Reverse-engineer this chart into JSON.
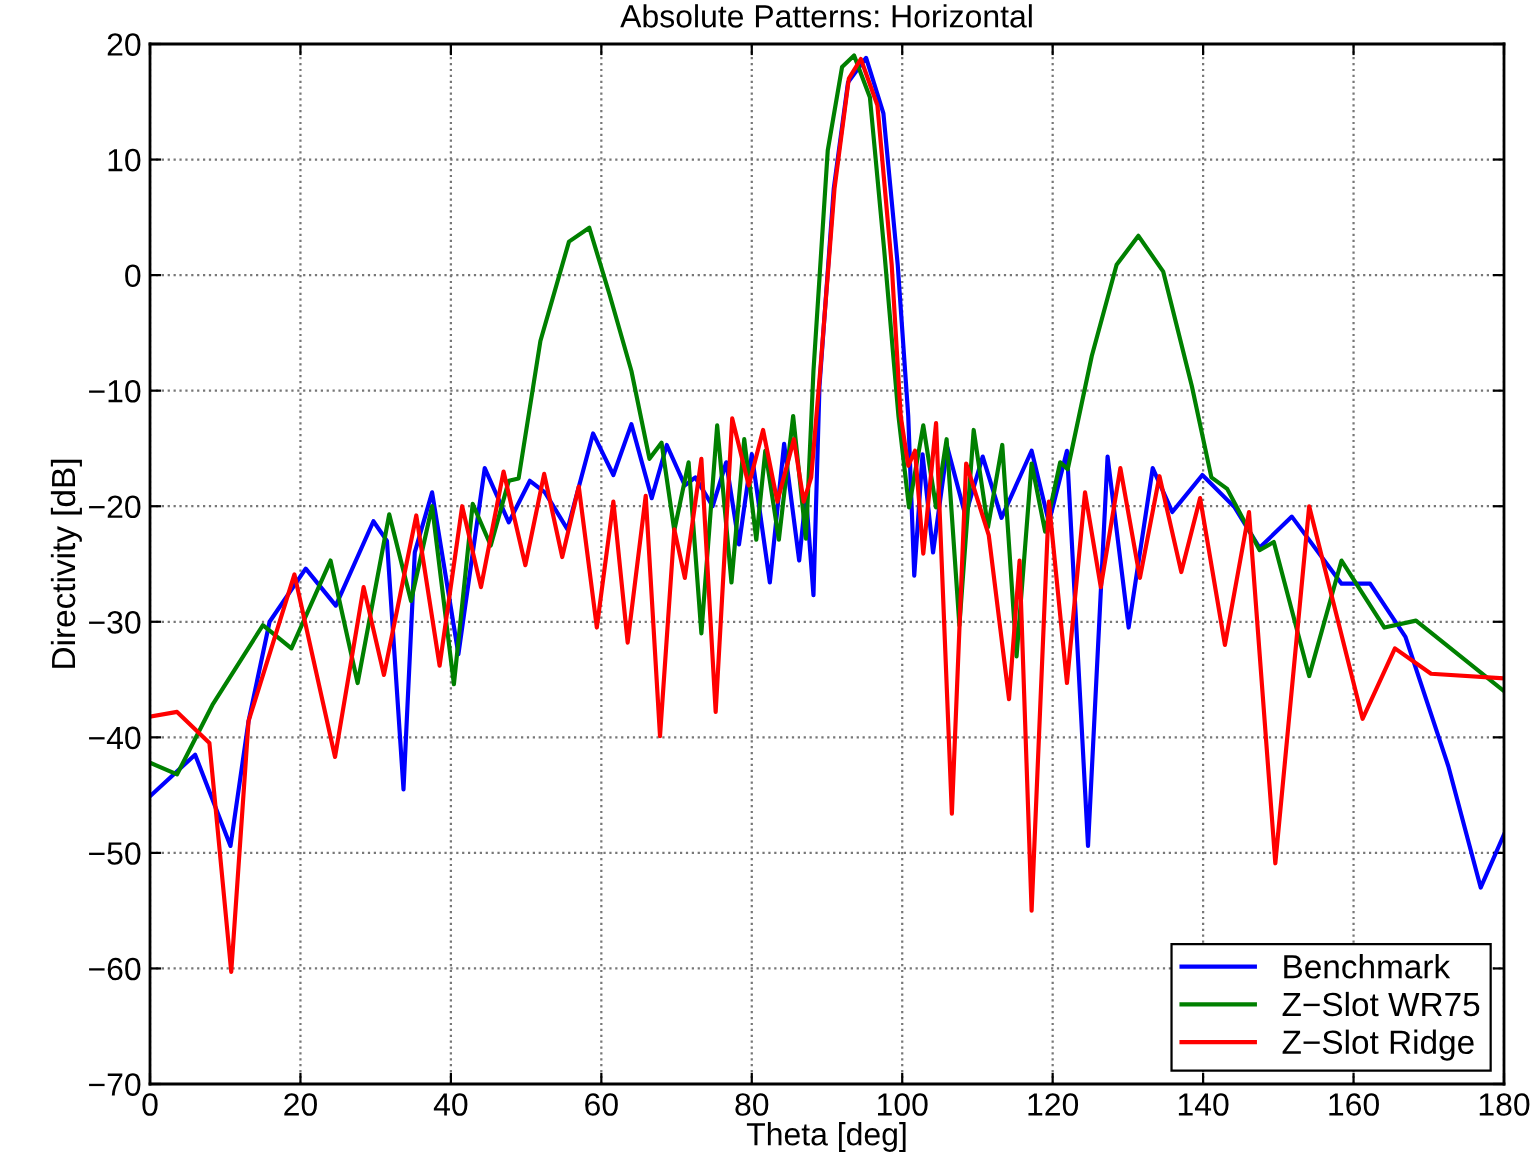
{
  "chart_data": {
    "type": "line",
    "title": "Absolute Patterns: Horizontal",
    "xlabel": "Theta [deg]",
    "ylabel": "Directivity [dB]",
    "xlim": [
      0,
      180
    ],
    "ylim": [
      -70,
      20
    ],
    "xticks": [
      0,
      20,
      40,
      60,
      80,
      100,
      120,
      140,
      160,
      180
    ],
    "yticks": [
      -70,
      -60,
      -50,
      -40,
      -30,
      -20,
      -10,
      0,
      10,
      20
    ],
    "grid": true,
    "legend": "bottom right",
    "line_style": "solid",
    "series": [
      {
        "name": "Benchmark",
        "color": "#0000ff",
        "x": [
          0,
          6,
          10.7,
          13.1,
          15.9,
          20.7,
          24.7,
          29.7,
          31.5,
          33.7,
          35.2,
          37.5,
          41,
          44.5,
          47.7,
          50.5,
          52.5,
          55.5,
          58.9,
          61.6,
          64,
          66.7,
          68.7,
          71.1,
          72.5,
          74.8,
          76.6,
          78.3,
          80,
          82.4,
          84.3,
          86.3,
          87.2,
          88.2,
          89,
          90.9,
          92.8,
          95.2,
          97.5,
          99.4,
          100.8,
          101.6,
          102.7,
          104.1,
          106,
          108.4,
          110.7,
          113.2,
          117.2,
          119.5,
          121.9,
          124.7,
          127.3,
          130.1,
          133.3,
          135.9,
          139.9,
          144.2,
          147.5,
          151.8,
          158.4,
          162.2,
          166.9,
          172.6,
          176.9,
          180
        ],
        "values": [
          -45.1,
          -41.5,
          -49.4,
          -38.6,
          -30,
          -25.4,
          -28.6,
          -21.3,
          -23,
          -44.5,
          -24,
          -18.8,
          -32.8,
          -16.7,
          -21.4,
          -17.8,
          -18.8,
          -22,
          -13.7,
          -17.3,
          -12.9,
          -19.3,
          -14.7,
          -18.2,
          -17.5,
          -20,
          -16.2,
          -23.3,
          -15.5,
          -26.6,
          -14.6,
          -24.7,
          -19,
          -27.7,
          -9.6,
          7.5,
          16.7,
          18.8,
          14,
          0.9,
          -12.2,
          -26,
          -15.5,
          -24,
          -14.9,
          -20.8,
          -15.7,
          -21,
          -15.2,
          -21.4,
          -15.2,
          -49.4,
          -15.7,
          -30.5,
          -16.7,
          -20.5,
          -17.3,
          -20.1,
          -23.6,
          -20.9,
          -26.7,
          -26.7,
          -31.3,
          -42.5,
          -53,
          -48.4
        ]
      },
      {
        "name": "Z−Slot WR75",
        "color": "#008000",
        "x": [
          0,
          3.6,
          8.3,
          15,
          18.8,
          24,
          27.6,
          31.8,
          34.7,
          37.5,
          40.4,
          42.9,
          45.3,
          47.7,
          49,
          51.9,
          55.7,
          58.4,
          61.1,
          64,
          66.4,
          68,
          69.7,
          71.6,
          73.3,
          75.4,
          77.3,
          79,
          80.6,
          81.8,
          83.6,
          85.5,
          87.2,
          88.2,
          90.1,
          92,
          93.6,
          95.7,
          97.6,
          99.5,
          100.9,
          102.8,
          104.5,
          105.9,
          107.6,
          109.5,
          111.4,
          113.3,
          115.2,
          117.2,
          119,
          121,
          122,
          125.2,
          128.5,
          131.4,
          134.7,
          138.5,
          141.1,
          143.2,
          147.5,
          149.4,
          154.1,
          158.4,
          164.1,
          168.3,
          180
        ],
        "values": [
          -42.2,
          -43.2,
          -37.2,
          -30.3,
          -32.3,
          -24.7,
          -35.3,
          -20.7,
          -28.2,
          -20,
          -35.4,
          -19.8,
          -23.4,
          -17.8,
          -17.6,
          -5.7,
          2.9,
          4.1,
          -1.7,
          -8.3,
          -15.9,
          -14.5,
          -22.1,
          -16.2,
          -31,
          -13,
          -26.6,
          -14.2,
          -22.9,
          -15.2,
          -22.9,
          -12.2,
          -22.8,
          -8.3,
          10.8,
          18,
          19,
          15.4,
          2.2,
          -12.2,
          -20.1,
          -13,
          -20.1,
          -14.2,
          -30.3,
          -13.4,
          -21.8,
          -14.7,
          -33,
          -16.3,
          -22.2,
          -16.2,
          -16.8,
          -7,
          0.9,
          3.4,
          0.3,
          -9.6,
          -17.5,
          -18.5,
          -23.8,
          -23.1,
          -34.7,
          -24.7,
          -30.5,
          -29.9,
          -36
        ]
      },
      {
        "name": "Z−Slot Ridge",
        "color": "#ff0000",
        "x": [
          0,
          3.6,
          7.9,
          10.8,
          13.1,
          19.2,
          24.6,
          28.4,
          31.1,
          35.4,
          38.5,
          41.5,
          44,
          47,
          49.9,
          52.4,
          54.8,
          57,
          59.4,
          61.6,
          63.5,
          65.9,
          67.8,
          69.7,
          71.1,
          73.3,
          75.2,
          77.4,
          79.6,
          81.5,
          83.4,
          85.6,
          86.9,
          87.9,
          89.1,
          91,
          92.9,
          94.5,
          96.7,
          98.6,
          99.8,
          100.8,
          101.7,
          102.8,
          104.5,
          106.6,
          108.5,
          111.5,
          114.2,
          115.6,
          117.2,
          119.5,
          121.9,
          124.3,
          126.4,
          129,
          131.6,
          134.2,
          137.1,
          139.6,
          142.9,
          146.1,
          149.6,
          154.1,
          161.2,
          165.5,
          170.3,
          180
        ],
        "values": [
          -38.2,
          -37.8,
          -40.5,
          -60.3,
          -38.6,
          -25.9,
          -41.7,
          -27,
          -34.6,
          -20.8,
          -33.8,
          -20,
          -27,
          -17,
          -25.1,
          -17.2,
          -24.4,
          -18.3,
          -30.5,
          -19.6,
          -31.8,
          -19.1,
          -39.9,
          -22,
          -26.2,
          -15.9,
          -37.8,
          -12.4,
          -18.2,
          -13.4,
          -19.6,
          -14.2,
          -19.6,
          -17.5,
          -8.3,
          7.5,
          17,
          18.7,
          14.7,
          0.9,
          -12.2,
          -16.5,
          -15.2,
          -24.1,
          -12.8,
          -46.6,
          -16.3,
          -22.5,
          -36.7,
          -24.7,
          -55,
          -19.6,
          -35.3,
          -18.8,
          -27,
          -16.7,
          -26.2,
          -17.4,
          -25.7,
          -19.3,
          -32,
          -20.5,
          -50.9,
          -20,
          -38.4,
          -32.3,
          -34.5,
          -34.9
        ]
      }
    ]
  }
}
